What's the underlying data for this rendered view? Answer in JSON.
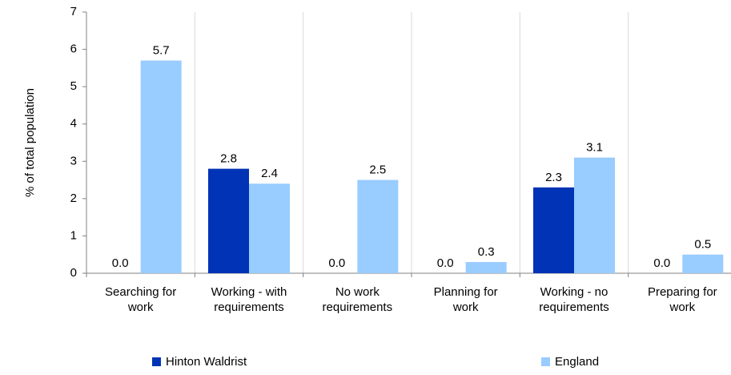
{
  "chart_data": {
    "type": "bar",
    "ylabel": "% of total population",
    "ylim": [
      0,
      7
    ],
    "yticks": [
      0,
      1,
      2,
      3,
      4,
      5,
      6,
      7
    ],
    "grid": "vertical separators between categories",
    "legend_position": "bottom",
    "categories": [
      [
        "Searching for",
        "work"
      ],
      [
        "Working - with",
        "requirements"
      ],
      [
        "No work",
        "requirements"
      ],
      [
        "Planning for",
        "work"
      ],
      [
        "Working - no",
        "requirements"
      ],
      [
        "Preparing for",
        "work"
      ]
    ],
    "series": [
      {
        "name": "Hinton Waldrist",
        "color": "#0033b5",
        "values": [
          0.0,
          2.8,
          0.0,
          0.0,
          2.3,
          0.0
        ],
        "labels": [
          "0.0",
          "2.8",
          "0.0",
          "0.0",
          "2.3",
          "0.0"
        ]
      },
      {
        "name": "England",
        "color": "#99ccff",
        "values": [
          5.7,
          2.4,
          2.5,
          0.3,
          3.1,
          0.5
        ],
        "labels": [
          "5.7",
          "2.4",
          "2.5",
          "0.3",
          "3.1",
          "0.5"
        ]
      }
    ]
  }
}
